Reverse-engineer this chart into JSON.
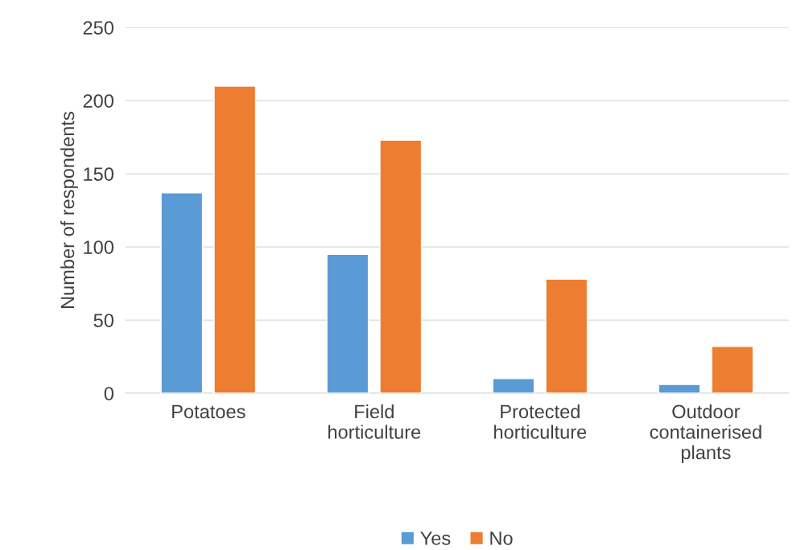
{
  "chart_data": {
    "type": "bar",
    "ylabel": "Number of respondents",
    "categories": [
      "Potatoes",
      "Field\nhorticulture",
      "Protected\nhorticulture",
      "Outdoor\ncontainerised\nplants"
    ],
    "series": [
      {
        "name": "Yes",
        "color": "#5b9bd5",
        "values": [
          137,
          95,
          10,
          6
        ]
      },
      {
        "name": "No",
        "color": "#ed7d31",
        "values": [
          210,
          173,
          78,
          32
        ]
      }
    ],
    "ylim": [
      0,
      250
    ],
    "yticks": [
      0,
      50,
      100,
      150,
      200,
      250
    ],
    "grid": "y",
    "legend": "bottom"
  }
}
